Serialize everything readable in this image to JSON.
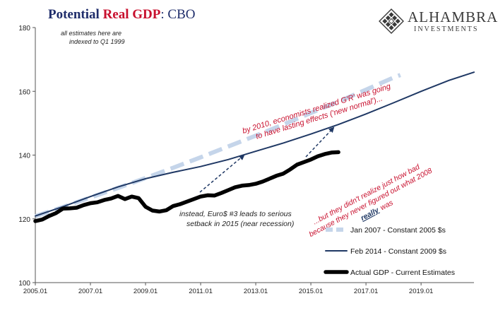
{
  "header": {
    "title_part1": "Potential ",
    "title_part2": "Real GDP",
    "title_part3": ":  CBO"
  },
  "logo": {
    "name": "ALHAMBRA",
    "sub": "INVESTMENTS",
    "icon": "diamond-pattern-icon"
  },
  "chart_data": {
    "type": "line",
    "title": "Potential Real GDP: CBO",
    "xlabel": "",
    "ylabel": "",
    "xlim": [
      2005.0,
      2020.92
    ],
    "ylim": [
      100,
      180
    ],
    "yticks": [
      100,
      120,
      140,
      160,
      180
    ],
    "xticks": [
      {
        "label": "2005.01",
        "x": 2005.0
      },
      {
        "label": "2007.01",
        "x": 2007.0
      },
      {
        "label": "2009.01",
        "x": 2009.0
      },
      {
        "label": "2011.01",
        "x": 2011.0
      },
      {
        "label": "2013.01",
        "x": 2013.0
      },
      {
        "label": "2015.01",
        "x": 2015.0
      },
      {
        "label": "2017.01",
        "x": 2017.0
      },
      {
        "label": "2019.01",
        "x": 2019.0
      }
    ],
    "grid": false,
    "legend_position": "bottom-right",
    "series": [
      {
        "name": "Jan 2007 - Constant 2005 $s",
        "color": "#c5d5ea",
        "style": "dashed",
        "x": [
          2005.0,
          2006.0,
          2007.0,
          2008.0,
          2009.0,
          2010.0,
          2011.0,
          2012.0,
          2013.0,
          2014.0,
          2015.0,
          2016.0,
          2017.0,
          2018.0,
          2018.25
        ],
        "y": [
          120.8,
          123.7,
          126.7,
          129.7,
          132.8,
          136.0,
          139.3,
          142.7,
          146.1,
          149.6,
          153.2,
          156.8,
          160.5,
          164.3,
          165.1
        ]
      },
      {
        "name": "Feb 2014 - Constant 2009 $s",
        "color": "#1f3864",
        "style": "solid",
        "x": [
          2005.0,
          2006.0,
          2007.0,
          2008.0,
          2009.0,
          2010.0,
          2011.0,
          2012.0,
          2013.0,
          2014.0,
          2015.0,
          2016.0,
          2017.0,
          2018.0,
          2019.0,
          2020.0,
          2020.92
        ],
        "y": [
          120.9,
          123.8,
          127.0,
          130.0,
          132.6,
          134.6,
          136.4,
          138.6,
          141.2,
          143.8,
          146.6,
          149.6,
          152.9,
          156.4,
          160.0,
          163.4,
          166.0
        ]
      },
      {
        "name": "Actual GDP - Current Estimates",
        "color": "#000000",
        "style": "thick",
        "x": [
          2005.0,
          2005.25,
          2005.5,
          2005.75,
          2006.0,
          2006.25,
          2006.5,
          2006.75,
          2007.0,
          2007.25,
          2007.5,
          2007.75,
          2008.0,
          2008.25,
          2008.5,
          2008.75,
          2009.0,
          2009.25,
          2009.5,
          2009.75,
          2010.0,
          2010.25,
          2010.5,
          2010.75,
          2011.0,
          2011.25,
          2011.5,
          2011.75,
          2012.0,
          2012.25,
          2012.5,
          2012.75,
          2013.0,
          2013.25,
          2013.5,
          2013.75,
          2014.0,
          2014.25,
          2014.5,
          2014.75,
          2015.0,
          2015.25,
          2015.5,
          2015.75,
          2016.0
        ],
        "y": [
          119.3,
          119.8,
          120.9,
          121.8,
          123.2,
          123.3,
          123.5,
          124.3,
          124.9,
          125.2,
          125.9,
          126.4,
          127.2,
          126.2,
          127.0,
          126.5,
          123.8,
          122.6,
          122.3,
          122.7,
          124.0,
          124.6,
          125.4,
          126.2,
          127.0,
          127.4,
          127.3,
          128.1,
          129.0,
          129.9,
          130.4,
          130.6,
          131.0,
          131.7,
          132.6,
          133.5,
          134.2,
          135.5,
          137.0,
          137.8,
          138.6,
          139.6,
          140.3,
          140.8,
          140.9
        ]
      }
    ],
    "annotations": [
      {
        "text": "all estimates here are",
        "style": "italic"
      },
      {
        "text": "indexed to Q1 1999",
        "style": "italic"
      },
      {
        "text": "by 2010, economists realized G'R' was going",
        "color": "#c8102e"
      },
      {
        "text": "to have lasting effects ('new normal')...",
        "color": "#c8102e"
      },
      {
        "text": "instead, Euro$ #3 leads to serious",
        "style": "italic"
      },
      {
        "text": "setback in 2015 (near recession)",
        "style": "italic"
      },
      {
        "text": "...but they didn't realize just how bad",
        "color": "#c8102e"
      },
      {
        "text": "because they never figured out what 2008",
        "color": "#c8102e"
      },
      {
        "text": "really",
        "color": "#1f3864"
      },
      {
        "text": "was",
        "color": "#c8102e"
      }
    ]
  }
}
